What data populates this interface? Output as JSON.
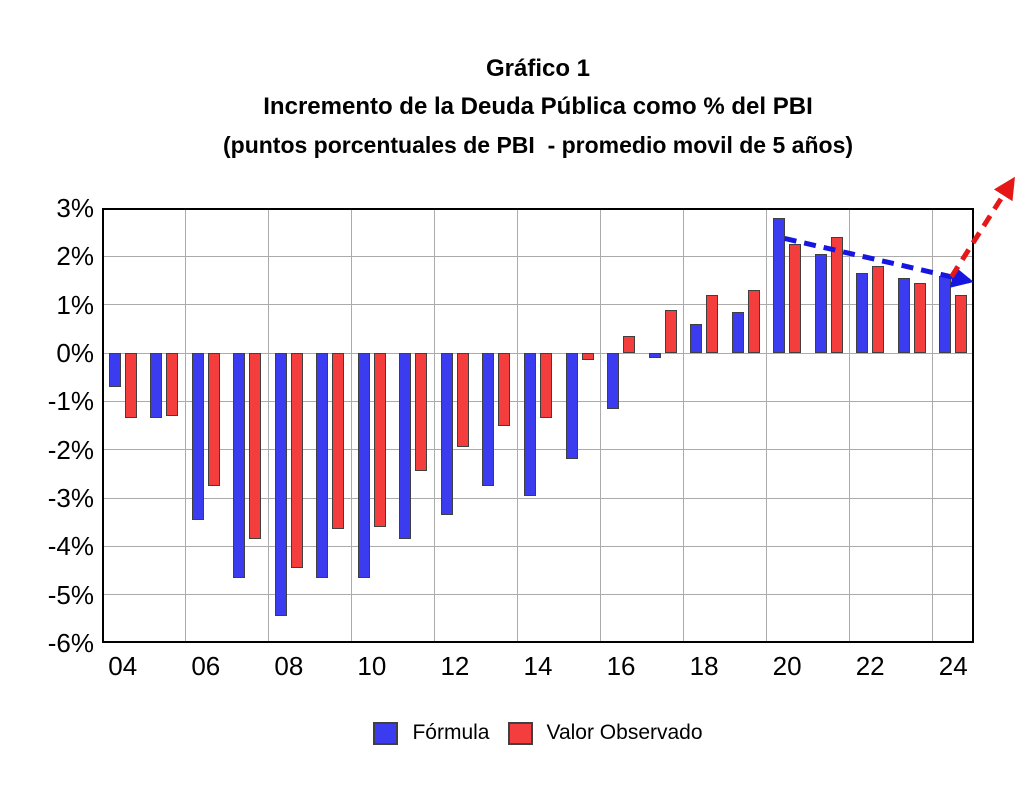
{
  "chart_data": {
    "type": "bar",
    "title": "Gráfico 1",
    "subtitle": "Incremento de la Deuda Pública como % del PBI",
    "subtitle2": "(puntos porcentuales de PBI  - promedio movil de 5 años)",
    "categories": [
      "04",
      "05",
      "06",
      "07",
      "08",
      "09",
      "10",
      "11",
      "12",
      "13",
      "14",
      "15",
      "16",
      "17",
      "18",
      "19",
      "20",
      "21",
      "22",
      "23",
      "24"
    ],
    "series": [
      {
        "name": "Fórmula",
        "color": "#3b3bf0",
        "values": [
          -0.7,
          -1.35,
          -3.45,
          -4.65,
          -5.45,
          -4.65,
          -4.65,
          -3.85,
          -3.35,
          -2.75,
          -2.95,
          -2.2,
          -1.15,
          -0.1,
          0.6,
          0.85,
          2.8,
          2.05,
          1.65,
          1.55,
          1.6
        ]
      },
      {
        "name": "Valor Observado",
        "color": "#f43d3d",
        "values": [
          -1.35,
          -1.3,
          -2.75,
          -3.85,
          -4.45,
          -3.65,
          -3.6,
          -2.45,
          -1.95,
          -1.5,
          -1.35,
          -0.15,
          0.35,
          0.9,
          1.2,
          1.3,
          2.25,
          2.4,
          1.8,
          1.45,
          1.2
        ]
      }
    ],
    "xlabel": "",
    "ylabel": "",
    "ylim": [
      -6,
      3
    ],
    "y_ticks": [
      3,
      2,
      1,
      0,
      -1,
      -2,
      -3,
      -4,
      -5,
      -6
    ],
    "y_tick_labels": [
      "3%",
      "2%",
      "1%",
      "0%",
      "-1%",
      "-2%",
      "-3%",
      "-4%",
      "-5%",
      "-6%"
    ],
    "x_tick_indices": [
      0,
      2,
      4,
      6,
      8,
      10,
      12,
      14,
      16,
      18,
      20
    ],
    "x_tick_labels": [
      "04",
      "06",
      "08",
      "10",
      "12",
      "14",
      "16",
      "18",
      "20",
      "22",
      "24"
    ],
    "grid": true,
    "legend_position": "bottom",
    "annotations": [
      {
        "name": "blue-trend-arrow",
        "style": "dashed-arrow",
        "color": "#1616e0",
        "from": {
          "x": 15.94,
          "y": 2.37
        },
        "to": {
          "x": 20.39,
          "y": 1.49
        }
      },
      {
        "name": "red-projection-arrow",
        "style": "dashed-arrow",
        "color": "#e61717",
        "from": {
          "x": 19.96,
          "y": 1.58
        },
        "to": {
          "x": 21.43,
          "y": 3.57
        }
      }
    ]
  },
  "colors": {
    "grid": "#ababab",
    "frame": "#000000",
    "bar_border": "#3f3f3f",
    "background": "#ffffff"
  }
}
